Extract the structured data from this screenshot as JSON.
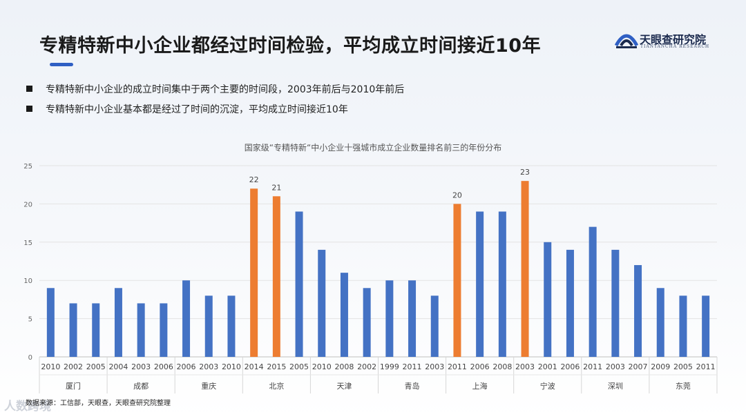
{
  "header": {
    "title": "专精特新中小企业都经过时间检验，平均成立时间接近10年"
  },
  "logo": {
    "name": "天眼查研究院",
    "subtitle": "TIANYANCHA RESEARCH"
  },
  "bullets": [
    "专精特新中小企业的成立时间集中于两个主要的时间段，2003年前后与2010年前后",
    "专精特新中小企业基本都是经过了时间的沉淀，平均成立时间接近10年"
  ],
  "source": "数据来源：工信部，天眼查，天眼查研究院整理",
  "watermark": "人数跨境",
  "colors": {
    "bar": "#4472c4",
    "highlight": "#ed7d31",
    "title_underline": "#2f5fc4"
  },
  "chart_data": {
    "type": "bar",
    "title": "国家级“专精特新“中小企业十强城市成立企业数量排名前三的年份分布",
    "ylim": [
      0,
      25
    ],
    "yticks": [
      0,
      5,
      10,
      15,
      20,
      25
    ],
    "grid": true,
    "groups": [
      {
        "city": "厦门",
        "years": [
          "2010",
          "2002",
          "2005"
        ],
        "values": [
          9,
          7,
          7
        ],
        "highlight": [
          false,
          false,
          false
        ]
      },
      {
        "city": "成都",
        "years": [
          "2004",
          "2003",
          "2006"
        ],
        "values": [
          9,
          7,
          7
        ],
        "highlight": [
          false,
          false,
          false
        ]
      },
      {
        "city": "重庆",
        "years": [
          "2006",
          "2003",
          "2010"
        ],
        "values": [
          10,
          8,
          8
        ],
        "highlight": [
          false,
          false,
          false
        ]
      },
      {
        "city": "北京",
        "years": [
          "2014",
          "2015",
          "2005"
        ],
        "values": [
          22,
          21,
          19
        ],
        "highlight": [
          true,
          true,
          false
        ]
      },
      {
        "city": "天津",
        "years": [
          "2010",
          "2008",
          "2002"
        ],
        "values": [
          14,
          11,
          9
        ],
        "highlight": [
          false,
          false,
          false
        ]
      },
      {
        "city": "青岛",
        "years": [
          "1999",
          "2011",
          "2003"
        ],
        "values": [
          10,
          10,
          8
        ],
        "highlight": [
          false,
          false,
          false
        ]
      },
      {
        "city": "上海",
        "years": [
          "2011",
          "2006",
          "2008"
        ],
        "values": [
          20,
          19,
          19
        ],
        "highlight": [
          true,
          false,
          false
        ]
      },
      {
        "city": "宁波",
        "years": [
          "2003",
          "2001",
          "2006"
        ],
        "values": [
          23,
          15,
          14
        ],
        "highlight": [
          true,
          false,
          false
        ]
      },
      {
        "city": "深圳",
        "years": [
          "2011",
          "2003",
          "2007"
        ],
        "values": [
          17,
          14,
          12
        ],
        "highlight": [
          false,
          false,
          false
        ]
      },
      {
        "city": "东莞",
        "years": [
          "2009",
          "2005",
          "2011"
        ],
        "values": [
          9,
          8,
          8
        ],
        "highlight": [
          false,
          false,
          false
        ]
      }
    ]
  }
}
